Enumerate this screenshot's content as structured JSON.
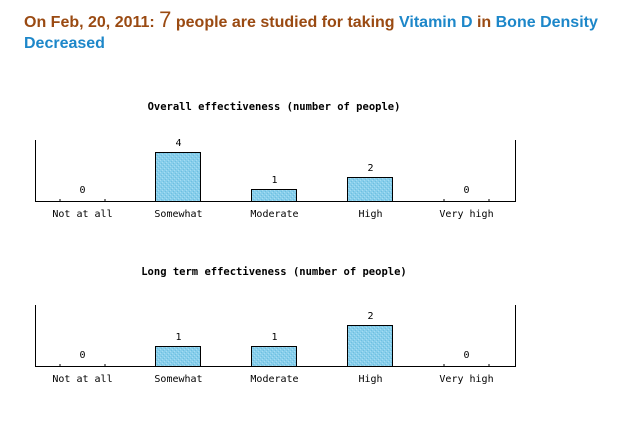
{
  "headline": {
    "prefix": "On Feb, 20, 2011: ",
    "count": "7",
    "middle": " people are studied for taking ",
    "drug": "Vitamin D",
    "connector": " in ",
    "condition": "Bone Density Decreased",
    "colors": {
      "text": "#9a4a12",
      "link": "#1d87c9"
    }
  },
  "bar_color": "#87ceeb",
  "chart_data": [
    {
      "type": "bar",
      "title": "Overall effectiveness (number of people)",
      "categories": [
        "Not at all",
        "Somewhat",
        "Moderate",
        "High",
        "Very high"
      ],
      "values": [
        0,
        4,
        1,
        2,
        0
      ],
      "xlabel": "",
      "ylabel": "",
      "ylim": [
        0,
        5
      ],
      "grid": false,
      "legend": "none"
    },
    {
      "type": "bar",
      "title": "Long term effectiveness (number of people)",
      "categories": [
        "Not at all",
        "Somewhat",
        "Moderate",
        "High",
        "Very high"
      ],
      "values": [
        0,
        1,
        1,
        2,
        0
      ],
      "xlabel": "",
      "ylabel": "",
      "ylim": [
        0,
        3
      ],
      "grid": false,
      "legend": "none"
    }
  ]
}
